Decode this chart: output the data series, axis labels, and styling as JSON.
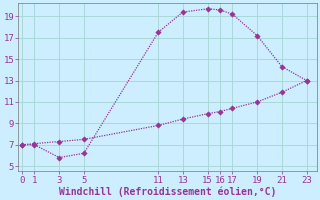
{
  "xlabel": "Windchill (Refroidissement éolien,°C)",
  "upper_x": [
    0,
    1,
    3,
    5,
    11,
    13,
    15,
    16,
    17,
    19,
    21,
    23
  ],
  "upper_y": [
    7.0,
    7.0,
    5.8,
    6.2,
    17.5,
    19.4,
    19.7,
    19.6,
    19.2,
    17.2,
    14.3,
    13.0
  ],
  "lower_x": [
    0,
    1,
    3,
    5,
    11,
    13,
    15,
    16,
    17,
    19,
    21,
    23
  ],
  "lower_y": [
    7.0,
    7.1,
    7.3,
    7.5,
    8.8,
    9.4,
    9.9,
    10.1,
    10.4,
    11.0,
    11.9,
    13.0
  ],
  "line_color": "#993399",
  "bg_color": "#cceeff",
  "grid_color": "#aad8d8",
  "xticks": [
    0,
    1,
    3,
    5,
    11,
    13,
    15,
    16,
    17,
    19,
    21,
    23
  ],
  "yticks": [
    5,
    7,
    9,
    11,
    13,
    15,
    17,
    19
  ],
  "xlim": [
    -0.3,
    23.8
  ],
  "ylim": [
    4.5,
    20.2
  ],
  "markersize": 2.8,
  "linewidth": 0.9,
  "xlabel_fontsize": 7.0,
  "tick_fontsize": 6.5
}
